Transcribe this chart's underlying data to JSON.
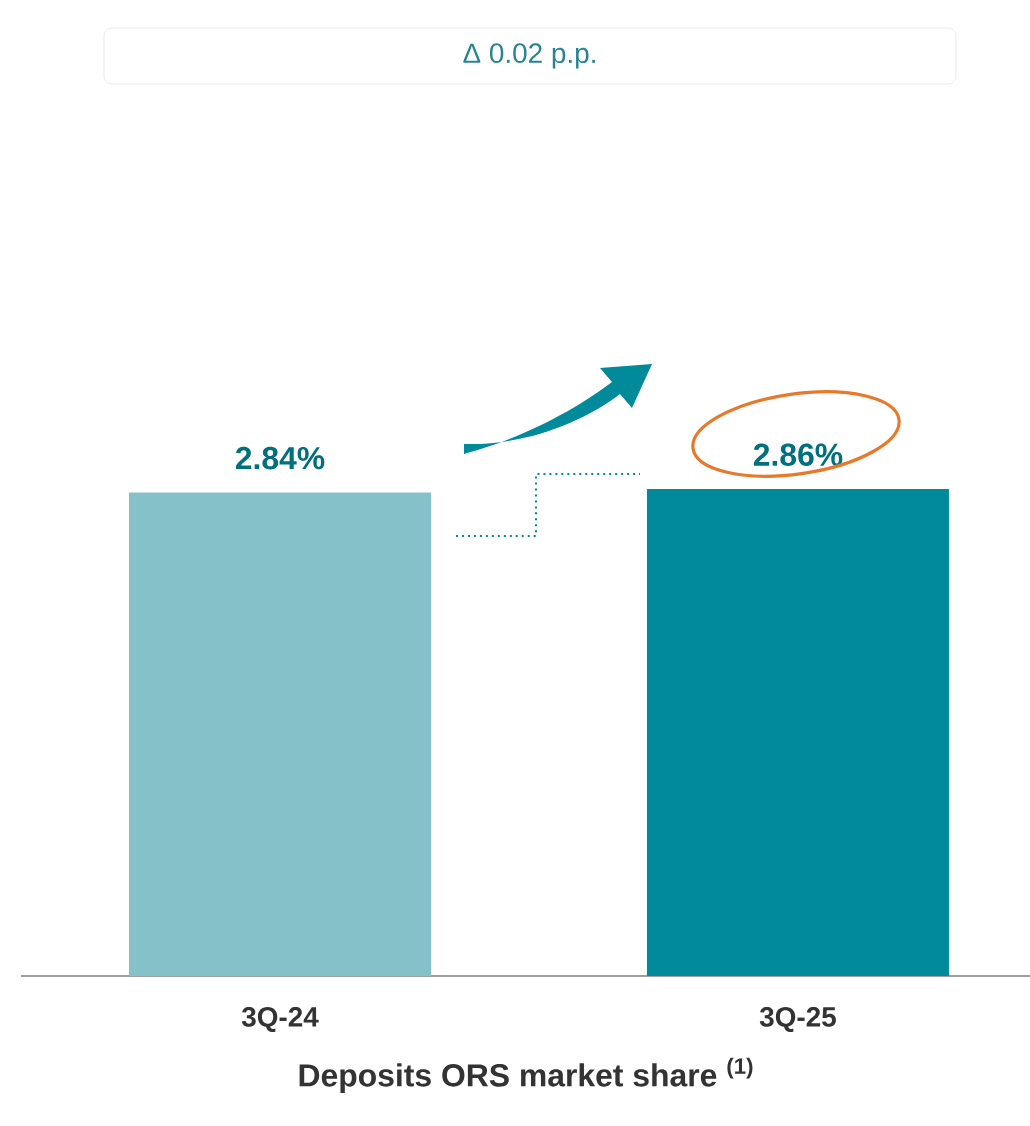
{
  "chart_data": {
    "type": "bar",
    "categories": [
      "3Q-24",
      "3Q-25"
    ],
    "values": [
      2.84,
      2.86
    ],
    "value_labels": [
      "2.84%",
      "2.86%"
    ],
    "colors": [
      "#84c1c9",
      "#008a9a"
    ],
    "xlabel": "Deposits ORS market share $^{(1)}$",
    "annotations": [
      "Δ 0.02 p.p."
    ]
  }
}
